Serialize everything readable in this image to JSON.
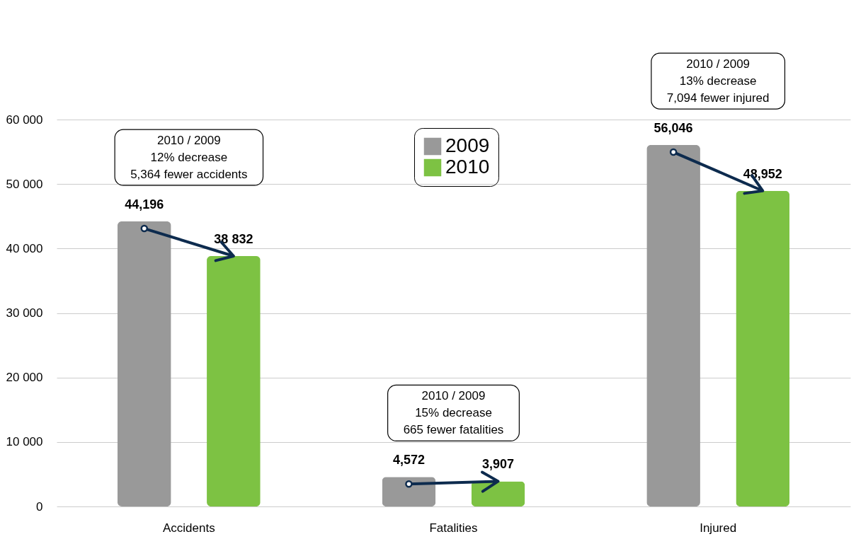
{
  "chart_data": {
    "type": "bar",
    "categories": [
      "Accidents",
      "Fatalities",
      "Injured"
    ],
    "series": [
      {
        "name": "2009",
        "color": "#999999",
        "values": [
          44196,
          4572,
          56046
        ],
        "value_labels": [
          "44,196",
          "4,572",
          "56,046"
        ]
      },
      {
        "name": "2010",
        "color": "#7dc243",
        "values": [
          38832,
          3907,
          48952
        ],
        "value_labels": [
          "38 832",
          "3,907",
          "48,952"
        ]
      }
    ],
    "ylim": [
      0,
      60000
    ],
    "yticks": [
      0,
      {
        "value": 10000,
        "label": "10 000"
      },
      {
        "value": 20000,
        "label": "20 000"
      },
      {
        "value": 30000,
        "label": "30 000"
      },
      {
        "value": 40000,
        "label": "40 000"
      },
      {
        "value": 50000,
        "label": "50 000"
      },
      {
        "value": 60000,
        "label": "60 000"
      }
    ],
    "grid": "y",
    "legend": "top",
    "annotations": [
      "2010 / 2009\n12% decrease\n5,364 fewer accidents",
      "2010 / 2009\n15% decrease\n665 fewer fatalities",
      "2010 / 2009\n13% decrease\n7,094 fewer injured"
    ]
  }
}
